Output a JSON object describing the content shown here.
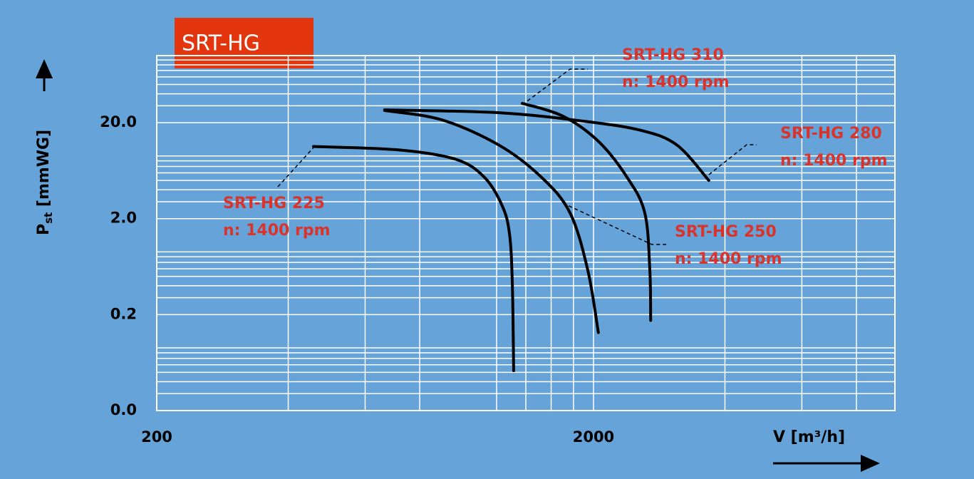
{
  "chart_data": {
    "type": "line",
    "title": "SRT-HG",
    "x_label": "V [m³/h]",
    "y_label": {
      "main": "P",
      "sub": "st",
      "rest": " [mmWG]"
    },
    "log_x": true,
    "log_y": true,
    "grid": true,
    "xlim": [
      200,
      9800
    ],
    "ylim": [
      0.02,
      100
    ],
    "xticks": [
      200,
      2000
    ],
    "x_minor_grid": [
      400,
      600,
      800,
      1200,
      1400,
      1600,
      1800,
      4000,
      6000,
      8000
    ],
    "yticks": [
      {
        "value": 0.02,
        "label": "0.0"
      },
      0.2,
      {
        "value": 2,
        "label": "2.0"
      },
      {
        "value": 20,
        "label": "20.0"
      }
    ],
    "y_minor_grid": [
      0.03,
      0.04,
      0.05,
      0.06,
      0.07,
      0.08,
      0.09,
      0.3,
      0.4,
      0.5,
      0.6,
      0.7,
      0.8,
      0.9,
      3,
      4,
      5,
      6,
      7,
      8,
      9,
      30,
      40,
      50,
      60,
      70,
      80,
      90,
      100
    ],
    "series": [
      {
        "name": "SRT-HG 225",
        "speed_label": "n: 1400 rpm",
        "color": "#000000",
        "x": [
          457,
          718,
          968,
          1125,
          1237,
          1285,
          1304,
          1313
        ],
        "values": [
          11.3,
          10.4,
          8.3,
          5.4,
          2.7,
          1.37,
          0.41,
          0.052
        ]
      },
      {
        "name": "SRT-HG 250",
        "speed_label": "n: 1400 rpm",
        "color": "#000000",
        "x": [
          665,
          899,
          1214,
          1520,
          1767,
          1941,
          2052
        ],
        "values": [
          26.8,
          21.4,
          11.7,
          5.4,
          2.3,
          0.58,
          0.13
        ]
      },
      {
        "name": "SRT-HG 280",
        "speed_label": "n: 1400 rpm",
        "color": "#000000",
        "x": [
          665,
          1214,
          1905,
          2572,
          3105,
          3674
        ],
        "values": [
          27.2,
          25.4,
          20.7,
          16.6,
          11.7,
          5.0
        ]
      },
      {
        "name": "SRT-HG 310",
        "speed_label": "n: 1400 rpm",
        "color": "#000000",
        "x": [
          1374,
          1702,
          2052,
          2387,
          2621,
          2692,
          2704
        ],
        "values": [
          31.8,
          23.4,
          12.8,
          5.4,
          2.3,
          0.58,
          0.174
        ]
      }
    ]
  }
}
